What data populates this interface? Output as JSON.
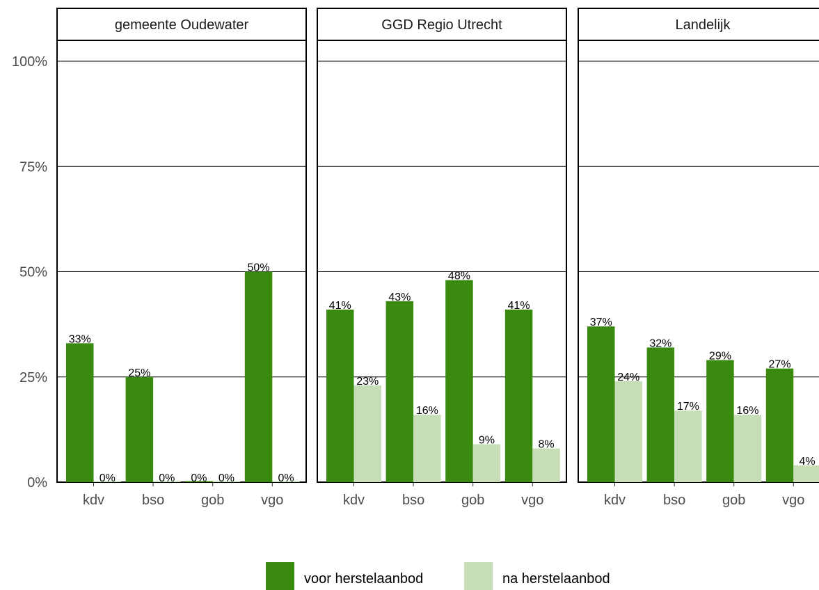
{
  "chart_data": {
    "type": "bar",
    "facets": [
      "gemeente Oudewater",
      "GGD Regio Utrecht",
      "Landelijk"
    ],
    "categories": [
      "kdv",
      "bso",
      "gob",
      "vgo"
    ],
    "series": [
      {
        "name": "voor herstelaanbod",
        "color": "#3a8a10"
      },
      {
        "name": "na herstelaanbod",
        "color": "#c6ddb8"
      }
    ],
    "values": {
      "gemeente Oudewater": {
        "voor herstelaanbod": [
          33,
          25,
          0,
          50
        ],
        "na herstelaanbod": [
          0,
          0,
          0,
          0
        ]
      },
      "GGD Regio Utrecht": {
        "voor herstelaanbod": [
          41,
          43,
          48,
          41
        ],
        "na herstelaanbod": [
          23,
          16,
          9,
          8
        ]
      },
      "Landelijk": {
        "voor herstelaanbod": [
          37,
          32,
          29,
          27
        ],
        "na herstelaanbod": [
          24,
          17,
          16,
          4
        ]
      }
    },
    "labels": {
      "gemeente Oudewater": {
        "voor herstelaanbod": [
          "33%",
          "25%",
          "0%",
          "50%"
        ],
        "na herstelaanbod": [
          "0%",
          "0%",
          "0%",
          "0%"
        ]
      },
      "GGD Regio Utrecht": {
        "voor herstelaanbod": [
          "41%",
          "43%",
          "48%",
          "41%"
        ],
        "na herstelaanbod": [
          "23%",
          "16%",
          "9%",
          "8%"
        ]
      },
      "Landelijk": {
        "voor herstelaanbod": [
          "37%",
          "32%",
          "29%",
          "27%"
        ],
        "na herstelaanbod": [
          "24%",
          "17%",
          "16%",
          "4%"
        ]
      }
    },
    "y_ticks": [
      {
        "value": 0,
        "label": "0%"
      },
      {
        "value": 25,
        "label": "25%"
      },
      {
        "value": 50,
        "label": "50%"
      },
      {
        "value": 75,
        "label": "75%"
      },
      {
        "value": 100,
        "label": "100%"
      }
    ],
    "ylim": [
      0,
      105
    ],
    "grid": "horizontal",
    "legend_position": "bottom"
  }
}
